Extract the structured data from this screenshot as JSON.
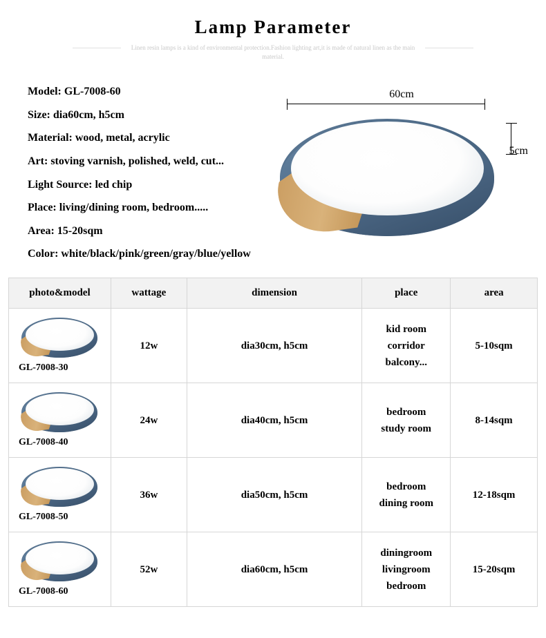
{
  "title": "Lamp Parameter",
  "subtitle": "Linen resin lamps is a kind of environmental protection.Fashion lighting art,it is made of natural linen as the main material.",
  "specs": [
    "Model: GL-7008-60",
    "Size: dia60cm, h5cm",
    "Material: wood, metal, acrylic",
    "Art: stoving varnish, polished, weld, cut...",
    "Light Source: led chip",
    "Place: living/dining room, bedroom.....",
    "Area: 15-20sqm",
    "Color: white/black/pink/green/gray/blue/yellow"
  ],
  "hero": {
    "width_label": "60cm",
    "height_label": "5cm"
  },
  "table": {
    "headers": [
      "photo&model",
      "wattage",
      "dimension",
      "place",
      "area"
    ],
    "rows": [
      {
        "model": "GL-7008-30",
        "wattage": "12w",
        "dimension": "dia30cm, h5cm",
        "place": "kid room\ncorridor\nbalcony...",
        "area": "5-10sqm"
      },
      {
        "model": "GL-7008-40",
        "wattage": "24w",
        "dimension": "dia40cm, h5cm",
        "place": "bedroom\nstudy room",
        "area": "8-14sqm"
      },
      {
        "model": "GL-7008-50",
        "wattage": "36w",
        "dimension": "dia50cm, h5cm",
        "place": "bedroom\ndining room",
        "area": "12-18sqm"
      },
      {
        "model": "GL-7008-60",
        "wattage": "52w",
        "dimension": "dia60cm, h5cm",
        "place": "diningroom\nlivingroom\nbedroom",
        "area": "15-20sqm"
      }
    ]
  },
  "colors": {
    "lamp_rim": "#4e6b88",
    "lamp_wood": "#c89a5e",
    "lamp_face": "#ffffff",
    "table_border": "#d6d6d6",
    "table_header_bg": "#f2f2f2"
  }
}
